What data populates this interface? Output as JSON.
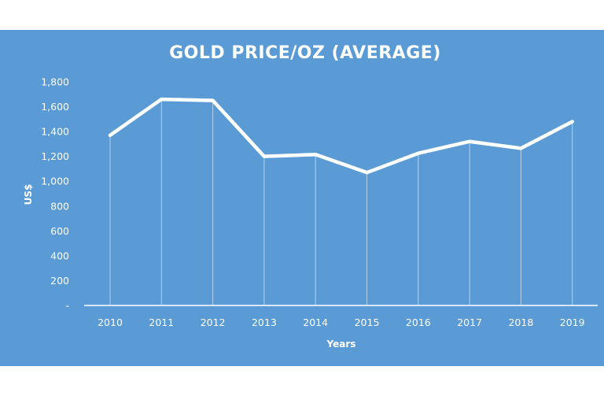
{
  "chart_data": {
    "type": "line",
    "title": "GOLD PRICE/OZ (AVERAGE)",
    "xlabel": "Years",
    "ylabel": "US$",
    "categories": [
      "2010",
      "2011",
      "2012",
      "2013",
      "2014",
      "2015",
      "2016",
      "2017",
      "2018",
      "2019"
    ],
    "series": [
      {
        "values": [
          1370,
          1660,
          1650,
          1200,
          1215,
          1070,
          1225,
          1320,
          1265,
          1480
        ]
      }
    ],
    "ylim": [
      0,
      1800
    ],
    "yticks": [
      0,
      200,
      400,
      600,
      800,
      1000,
      1200,
      1400,
      1600,
      1800
    ],
    "ytick_labels": [
      "-",
      "200",
      "400",
      "600",
      "800",
      "1,000",
      "1,200",
      "1,400",
      "1,600",
      "1,800"
    ],
    "grid": "vertical drop lines at each category",
    "legend": "none",
    "colors": {
      "background": "#5b9bd5",
      "line": "#ffffff",
      "text": "#ffffff"
    }
  }
}
